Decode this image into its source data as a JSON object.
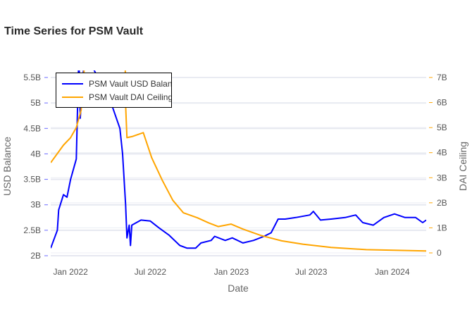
{
  "title": "Time Series for PSM Vault",
  "chart_data": {
    "type": "line",
    "title": "Time Series for PSM Vault",
    "xlabel": "Date",
    "ylabel": "USD Balance",
    "y2label": "DAI Ceiling",
    "xlim": [
      "2021-11-17",
      "2024-03-18"
    ],
    "ylim": [
      1.95,
      5.55
    ],
    "y2lim": [
      -0.1,
      7.2
    ],
    "x_ticks": [
      {
        "date": "2022-01-01",
        "label": "Jan 2022"
      },
      {
        "date": "2022-07-01",
        "label": "Jul 2022"
      },
      {
        "date": "2023-01-01",
        "label": "Jan 2023"
      },
      {
        "date": "2023-07-01",
        "label": "Jul 2023"
      },
      {
        "date": "2024-01-01",
        "label": "Jan 2024"
      }
    ],
    "y_ticks": [
      {
        "value": 2,
        "label": "2B"
      },
      {
        "value": 2.5,
        "label": "2.5B"
      },
      {
        "value": 3,
        "label": "3B"
      },
      {
        "value": 3.5,
        "label": "3.5B"
      },
      {
        "value": 4,
        "label": "4B"
      },
      {
        "value": 4.5,
        "label": "4.5B"
      },
      {
        "value": 5,
        "label": "5B"
      },
      {
        "value": 5.5,
        "label": "5.5B"
      }
    ],
    "y2_ticks": [
      {
        "value": 0,
        "label": "0"
      },
      {
        "value": 1,
        "label": "1B"
      },
      {
        "value": 2,
        "label": "2B"
      },
      {
        "value": 3,
        "label": "3B"
      },
      {
        "value": 4,
        "label": "4B"
      },
      {
        "value": 5,
        "label": "5B"
      },
      {
        "value": 6,
        "label": "6B"
      },
      {
        "value": 7,
        "label": "7B"
      }
    ],
    "legend_position": "top-left",
    "units": "billions USD",
    "series": [
      {
        "name": "PSM Vault USD Balance",
        "axis": "left",
        "color": "#0000ff",
        "points": [
          [
            "2021-11-17",
            2.15
          ],
          [
            "2021-12-02",
            2.5
          ],
          [
            "2021-12-05",
            2.9
          ],
          [
            "2021-12-16",
            3.2
          ],
          [
            "2021-12-24",
            3.15
          ],
          [
            "2022-01-01",
            3.5
          ],
          [
            "2022-01-14",
            3.9
          ],
          [
            "2022-01-20",
            6.0
          ],
          [
            "2022-01-23",
            4.7
          ],
          [
            "2022-02-02",
            6.0
          ],
          [
            "2022-03-22",
            5.2
          ],
          [
            "2022-04-07",
            4.9
          ],
          [
            "2022-04-23",
            4.5
          ],
          [
            "2022-04-29",
            4.0
          ],
          [
            "2022-05-06",
            3.0
          ],
          [
            "2022-05-09",
            2.35
          ],
          [
            "2022-05-14",
            2.6
          ],
          [
            "2022-05-17",
            2.2
          ],
          [
            "2022-05-20",
            2.6
          ],
          [
            "2022-06-10",
            2.7
          ],
          [
            "2022-07-01",
            2.68
          ],
          [
            "2022-07-20",
            2.55
          ],
          [
            "2022-08-13",
            2.4
          ],
          [
            "2022-09-06",
            2.2
          ],
          [
            "2022-09-22",
            2.15
          ],
          [
            "2022-10-12",
            2.15
          ],
          [
            "2022-10-24",
            2.25
          ],
          [
            "2022-11-16",
            2.3
          ],
          [
            "2022-11-24",
            2.38
          ],
          [
            "2022-12-18",
            2.3
          ],
          [
            "2023-01-03",
            2.35
          ],
          [
            "2023-01-27",
            2.25
          ],
          [
            "2023-02-20",
            2.3
          ],
          [
            "2023-03-16",
            2.38
          ],
          [
            "2023-04-01",
            2.45
          ],
          [
            "2023-04-17",
            2.72
          ],
          [
            "2023-05-03",
            2.72
          ],
          [
            "2023-05-27",
            2.75
          ],
          [
            "2023-06-28",
            2.8
          ],
          [
            "2023-07-06",
            2.87
          ],
          [
            "2023-07-22",
            2.7
          ],
          [
            "2023-08-15",
            2.72
          ],
          [
            "2023-09-16",
            2.75
          ],
          [
            "2023-10-10",
            2.8
          ],
          [
            "2023-10-26",
            2.65
          ],
          [
            "2023-11-19",
            2.6
          ],
          [
            "2023-12-13",
            2.75
          ],
          [
            "2024-01-06",
            2.82
          ],
          [
            "2024-01-30",
            2.75
          ],
          [
            "2024-02-23",
            2.75
          ],
          [
            "2024-03-10",
            2.65
          ],
          [
            "2024-03-18",
            2.7
          ]
        ]
      },
      {
        "name": "PSM Vault DAI Ceiling",
        "axis": "right",
        "color": "#ffa500",
        "points": [
          [
            "2021-11-17",
            3.6
          ],
          [
            "2021-12-16",
            4.3
          ],
          [
            "2022-01-01",
            4.6
          ],
          [
            "2022-01-14",
            5.0
          ],
          [
            "2022-01-25",
            5.7
          ],
          [
            "2022-02-02",
            7.6
          ],
          [
            "2022-05-05",
            7.6
          ],
          [
            "2022-05-06",
            5.9
          ],
          [
            "2022-05-09",
            4.6
          ],
          [
            "2022-05-22",
            4.65
          ],
          [
            "2022-06-15",
            4.8
          ],
          [
            "2022-07-04",
            3.8
          ],
          [
            "2022-07-28",
            2.9
          ],
          [
            "2022-08-21",
            2.1
          ],
          [
            "2022-09-14",
            1.6
          ],
          [
            "2022-10-16",
            1.4
          ],
          [
            "2022-11-10",
            1.2
          ],
          [
            "2022-12-02",
            1.05
          ],
          [
            "2022-12-31",
            1.15
          ],
          [
            "2023-01-27",
            0.95
          ],
          [
            "2023-03-08",
            0.7
          ],
          [
            "2023-04-25",
            0.48
          ],
          [
            "2023-06-12",
            0.35
          ],
          [
            "2023-08-15",
            0.22
          ],
          [
            "2023-11-03",
            0.13
          ],
          [
            "2024-03-18",
            0.08
          ]
        ]
      }
    ]
  }
}
